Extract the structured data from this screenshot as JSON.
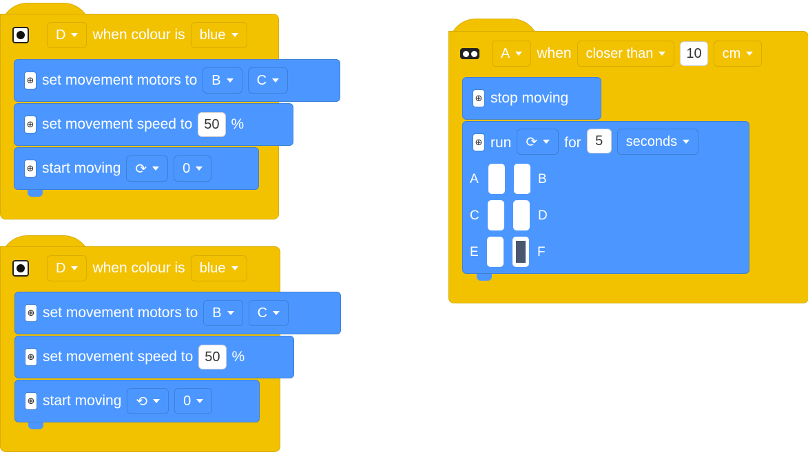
{
  "scripts": [
    {
      "hat": {
        "port": "D",
        "label": "when colour is",
        "colour": "blue"
      },
      "blocks": [
        {
          "label": "set movement motors to",
          "port1": "B",
          "port2": "C"
        },
        {
          "label": "set movement speed to",
          "value": "50",
          "unit": "%"
        },
        {
          "label": "start moving",
          "direction_icon": "rotate-clockwise-icon",
          "value": "0"
        }
      ]
    },
    {
      "hat": {
        "port": "D",
        "label": "when colour is",
        "colour": "blue"
      },
      "blocks": [
        {
          "label": "set movement motors to",
          "port1": "B",
          "port2": "C"
        },
        {
          "label": "set movement speed to",
          "value": "50",
          "unit": "%"
        },
        {
          "label": "start moving",
          "direction_icon": "rotate-counterclockwise-icon",
          "value": "0"
        }
      ]
    },
    {
      "hat": {
        "port": "A",
        "label": "when",
        "condition": "closer than",
        "value": "10",
        "unit": "cm"
      },
      "blocks": [
        {
          "label": "stop moving"
        },
        {
          "label": "run",
          "direction_icon": "rotate-clockwise-icon",
          "for_label": "for",
          "value": "5",
          "unit": "seconds",
          "matrix_labels": [
            "A",
            "B",
            "C",
            "D",
            "E",
            "F"
          ]
        }
      ]
    }
  ]
}
